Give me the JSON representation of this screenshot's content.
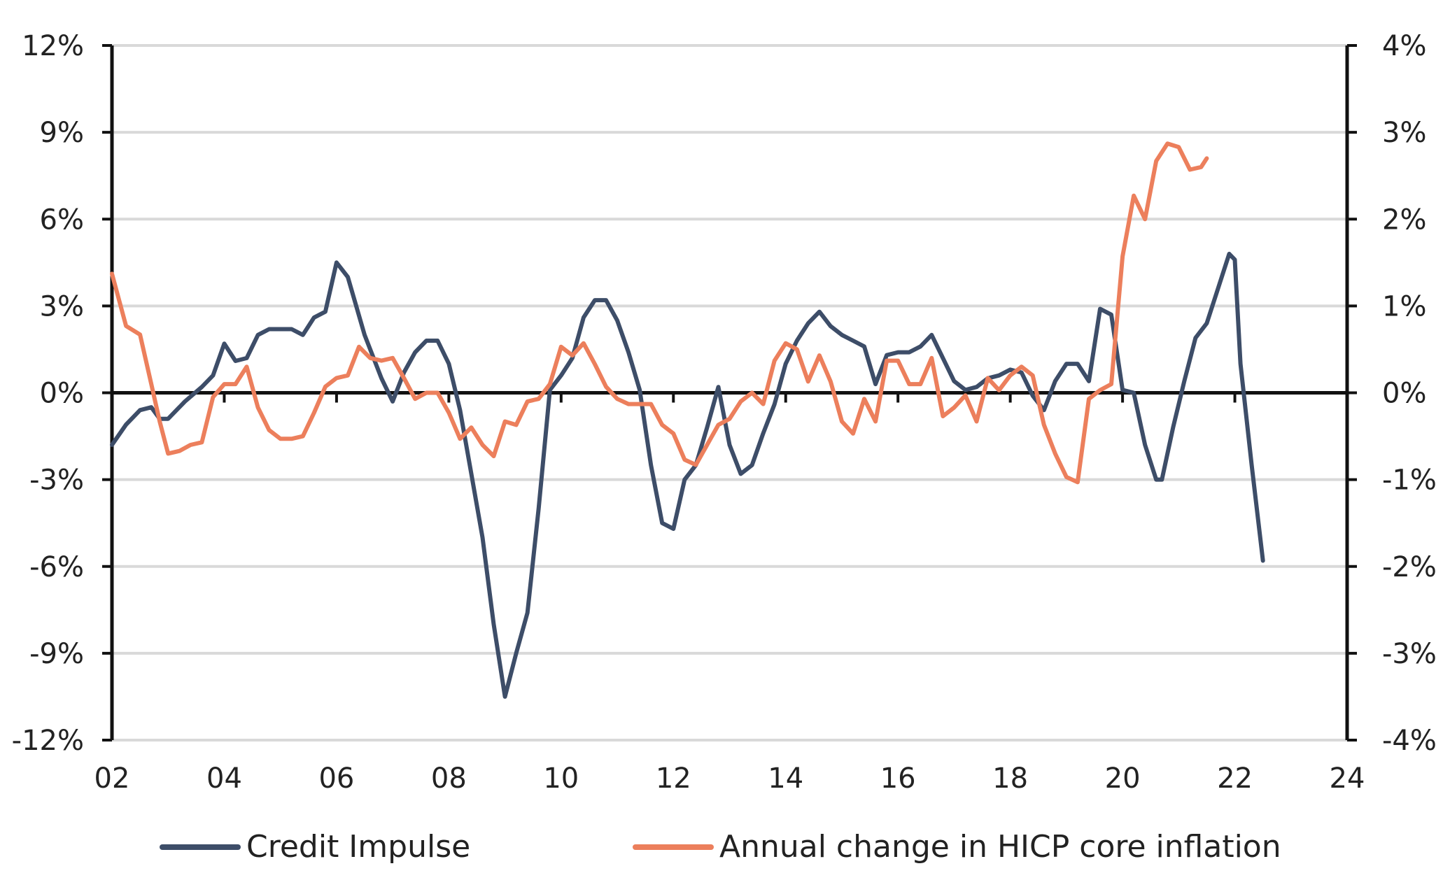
{
  "chart_data": {
    "type": "line",
    "title": "",
    "xlabel": "",
    "ylabel": "",
    "xlim": [
      2002,
      2024
    ],
    "x_ticks": [
      "02",
      "04",
      "06",
      "08",
      "10",
      "12",
      "14",
      "16",
      "18",
      "20",
      "22",
      "24"
    ],
    "y_left": {
      "ylim": [
        -12,
        12
      ],
      "ticks": [
        "12%",
        "9%",
        "6%",
        "3%",
        "0%",
        "-3%",
        "-6%",
        "-9%",
        "-12%"
      ]
    },
    "y_right": {
      "ylim": [
        -4,
        4
      ],
      "ticks": [
        "4%",
        "3%",
        "2%",
        "1%",
        "0%",
        "-1%",
        "-2%",
        "-3%",
        "-4%"
      ]
    },
    "grid": "horizontal",
    "legend_position": "bottom",
    "series": [
      {
        "name": "Credit Impulse",
        "axis": "left",
        "color": "#3d4d68",
        "points": [
          [
            2002.0,
            -1.8
          ],
          [
            2002.25,
            -1.1
          ],
          [
            2002.5,
            -0.6
          ],
          [
            2002.7,
            -0.5
          ],
          [
            2002.85,
            -0.9
          ],
          [
            2003.0,
            -0.9
          ],
          [
            2003.3,
            -0.3
          ],
          [
            2003.6,
            0.2
          ],
          [
            2003.8,
            0.6
          ],
          [
            2004.0,
            1.7
          ],
          [
            2004.2,
            1.1
          ],
          [
            2004.4,
            1.2
          ],
          [
            2004.6,
            2.0
          ],
          [
            2004.8,
            2.2
          ],
          [
            2005.0,
            2.2
          ],
          [
            2005.2,
            2.2
          ],
          [
            2005.4,
            2.0
          ],
          [
            2005.6,
            2.6
          ],
          [
            2005.8,
            2.8
          ],
          [
            2006.0,
            4.5
          ],
          [
            2006.2,
            4.0
          ],
          [
            2006.5,
            2.0
          ],
          [
            2006.8,
            0.5
          ],
          [
            2007.0,
            -0.3
          ],
          [
            2007.2,
            0.7
          ],
          [
            2007.4,
            1.4
          ],
          [
            2007.6,
            1.8
          ],
          [
            2007.8,
            1.8
          ],
          [
            2008.0,
            1.0
          ],
          [
            2008.2,
            -0.6
          ],
          [
            2008.4,
            -2.8
          ],
          [
            2008.6,
            -5.0
          ],
          [
            2008.8,
            -8.0
          ],
          [
            2009.0,
            -10.5
          ],
          [
            2009.2,
            -9.0
          ],
          [
            2009.4,
            -7.6
          ],
          [
            2009.6,
            -4.0
          ],
          [
            2009.8,
            0.1
          ],
          [
            2010.0,
            0.6
          ],
          [
            2010.2,
            1.2
          ],
          [
            2010.4,
            2.6
          ],
          [
            2010.6,
            3.2
          ],
          [
            2010.8,
            3.2
          ],
          [
            2011.0,
            2.5
          ],
          [
            2011.2,
            1.4
          ],
          [
            2011.4,
            0.1
          ],
          [
            2011.6,
            -2.5
          ],
          [
            2011.8,
            -4.5
          ],
          [
            2012.0,
            -4.7
          ],
          [
            2012.2,
            -3.0
          ],
          [
            2012.4,
            -2.5
          ],
          [
            2012.6,
            -1.2
          ],
          [
            2012.8,
            0.2
          ],
          [
            2013.0,
            -1.8
          ],
          [
            2013.2,
            -2.8
          ],
          [
            2013.4,
            -2.5
          ],
          [
            2013.6,
            -1.4
          ],
          [
            2013.8,
            -0.4
          ],
          [
            2014.0,
            1.0
          ],
          [
            2014.2,
            1.8
          ],
          [
            2014.4,
            2.4
          ],
          [
            2014.6,
            2.8
          ],
          [
            2014.8,
            2.3
          ],
          [
            2015.0,
            2.0
          ],
          [
            2015.2,
            1.8
          ],
          [
            2015.4,
            1.6
          ],
          [
            2015.6,
            0.3
          ],
          [
            2015.8,
            1.3
          ],
          [
            2016.0,
            1.4
          ],
          [
            2016.2,
            1.4
          ],
          [
            2016.4,
            1.6
          ],
          [
            2016.6,
            2.0
          ],
          [
            2016.8,
            1.2
          ],
          [
            2017.0,
            0.4
          ],
          [
            2017.2,
            0.1
          ],
          [
            2017.4,
            0.2
          ],
          [
            2017.6,
            0.5
          ],
          [
            2017.8,
            0.6
          ],
          [
            2018.0,
            0.8
          ],
          [
            2018.2,
            0.7
          ],
          [
            2018.4,
            -0.1
          ],
          [
            2018.6,
            -0.6
          ],
          [
            2018.8,
            0.4
          ],
          [
            2019.0,
            1.0
          ],
          [
            2019.2,
            1.0
          ],
          [
            2019.4,
            0.4
          ],
          [
            2019.6,
            2.9
          ],
          [
            2019.8,
            2.7
          ],
          [
            2020.0,
            0.1
          ],
          [
            2020.2,
            0.0
          ],
          [
            2020.4,
            -1.8
          ],
          [
            2020.6,
            -3.0
          ],
          [
            2020.7,
            -3.0
          ],
          [
            2020.9,
            -1.2
          ],
          [
            2021.1,
            0.4
          ],
          [
            2021.3,
            1.9
          ],
          [
            2021.5,
            2.4
          ],
          [
            2021.7,
            3.6
          ],
          [
            2021.9,
            4.8
          ],
          [
            2022.0,
            4.6
          ],
          [
            2022.1,
            1.0
          ],
          [
            2022.3,
            -2.5
          ],
          [
            2022.5,
            -5.8
          ]
        ]
      },
      {
        "name": "Annual change in HICP core inflation",
        "axis": "right",
        "color": "#ec7f5c",
        "points": [
          [
            2002.0,
            1.37
          ],
          [
            2002.25,
            0.77
          ],
          [
            2002.5,
            0.67
          ],
          [
            2002.7,
            0.1
          ],
          [
            2002.85,
            -0.33
          ],
          [
            2003.0,
            -0.7
          ],
          [
            2003.2,
            -0.67
          ],
          [
            2003.4,
            -0.6
          ],
          [
            2003.6,
            -0.57
          ],
          [
            2003.8,
            -0.05
          ],
          [
            2004.0,
            0.1
          ],
          [
            2004.2,
            0.1
          ],
          [
            2004.4,
            0.3
          ],
          [
            2004.6,
            -0.17
          ],
          [
            2004.8,
            -0.43
          ],
          [
            2005.0,
            -0.53
          ],
          [
            2005.2,
            -0.53
          ],
          [
            2005.4,
            -0.5
          ],
          [
            2005.6,
            -0.23
          ],
          [
            2005.8,
            0.07
          ],
          [
            2006.0,
            0.17
          ],
          [
            2006.2,
            0.2
          ],
          [
            2006.4,
            0.53
          ],
          [
            2006.6,
            0.4
          ],
          [
            2006.8,
            0.37
          ],
          [
            2007.0,
            0.4
          ],
          [
            2007.2,
            0.17
          ],
          [
            2007.4,
            -0.07
          ],
          [
            2007.6,
            0.0
          ],
          [
            2007.8,
            0.0
          ],
          [
            2008.0,
            -0.23
          ],
          [
            2008.2,
            -0.53
          ],
          [
            2008.4,
            -0.4
          ],
          [
            2008.6,
            -0.6
          ],
          [
            2008.8,
            -0.73
          ],
          [
            2009.0,
            -0.33
          ],
          [
            2009.2,
            -0.37
          ],
          [
            2009.4,
            -0.1
          ],
          [
            2009.6,
            -0.07
          ],
          [
            2009.8,
            0.1
          ],
          [
            2010.0,
            0.53
          ],
          [
            2010.2,
            0.43
          ],
          [
            2010.4,
            0.57
          ],
          [
            2010.6,
            0.33
          ],
          [
            2010.8,
            0.07
          ],
          [
            2011.0,
            -0.07
          ],
          [
            2011.2,
            -0.13
          ],
          [
            2011.4,
            -0.13
          ],
          [
            2011.6,
            -0.13
          ],
          [
            2011.8,
            -0.37
          ],
          [
            2012.0,
            -0.47
          ],
          [
            2012.2,
            -0.77
          ],
          [
            2012.4,
            -0.83
          ],
          [
            2012.6,
            -0.6
          ],
          [
            2012.8,
            -0.37
          ],
          [
            2013.0,
            -0.3
          ],
          [
            2013.2,
            -0.1
          ],
          [
            2013.4,
            0.0
          ],
          [
            2013.6,
            -0.13
          ],
          [
            2013.8,
            0.37
          ],
          [
            2014.0,
            0.57
          ],
          [
            2014.2,
            0.5
          ],
          [
            2014.4,
            0.13
          ],
          [
            2014.6,
            0.43
          ],
          [
            2014.8,
            0.13
          ],
          [
            2015.0,
            -0.33
          ],
          [
            2015.2,
            -0.47
          ],
          [
            2015.4,
            -0.07
          ],
          [
            2015.6,
            -0.33
          ],
          [
            2015.8,
            0.37
          ],
          [
            2016.0,
            0.37
          ],
          [
            2016.2,
            0.1
          ],
          [
            2016.4,
            0.1
          ],
          [
            2016.6,
            0.4
          ],
          [
            2016.8,
            -0.27
          ],
          [
            2017.0,
            -0.17
          ],
          [
            2017.2,
            -0.03
          ],
          [
            2017.4,
            -0.33
          ],
          [
            2017.6,
            0.17
          ],
          [
            2017.8,
            0.03
          ],
          [
            2018.0,
            0.2
          ],
          [
            2018.2,
            0.3
          ],
          [
            2018.4,
            0.2
          ],
          [
            2018.6,
            -0.37
          ],
          [
            2018.8,
            -0.7
          ],
          [
            2019.0,
            -0.97
          ],
          [
            2019.2,
            -1.03
          ],
          [
            2019.4,
            -0.07
          ],
          [
            2019.6,
            0.03
          ],
          [
            2019.8,
            0.1
          ],
          [
            2020.0,
            1.57
          ],
          [
            2020.2,
            2.27
          ],
          [
            2020.4,
            2.0
          ],
          [
            2020.6,
            2.67
          ],
          [
            2020.8,
            2.87
          ],
          [
            2021.0,
            2.83
          ],
          [
            2021.2,
            2.57
          ],
          [
            2021.4,
            2.6
          ],
          [
            2021.5,
            2.7
          ]
        ]
      }
    ]
  }
}
